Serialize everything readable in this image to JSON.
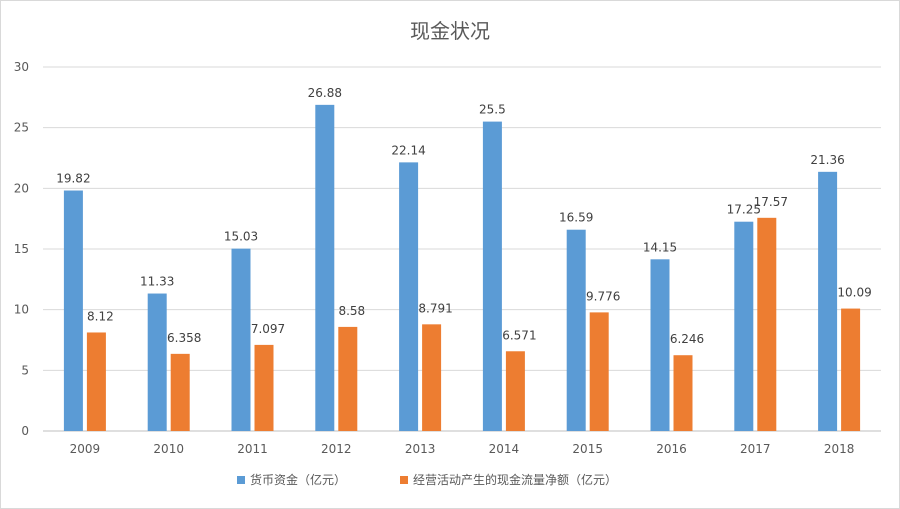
{
  "chart_data": {
    "type": "bar",
    "title": "现金状况",
    "xlabel": "",
    "ylabel": "",
    "categories": [
      "2009",
      "2010",
      "2011",
      "2012",
      "2013",
      "2014",
      "2015",
      "2016",
      "2017",
      "2018"
    ],
    "series": [
      {
        "name": "货币资金（亿元）",
        "color": "#5b9bd5",
        "values": [
          19.82,
          11.33,
          15.03,
          26.88,
          22.14,
          25.5,
          16.59,
          14.15,
          17.25,
          21.36
        ],
        "labels": [
          "19.82",
          "11.33",
          "15.03",
          "26.88",
          "22.14",
          "25.5",
          "16.59",
          "14.15",
          "17.25",
          "21.36"
        ]
      },
      {
        "name": "经营活动产生的现金流量净额（亿元）",
        "color": "#ed7d31",
        "values": [
          8.12,
          6.358,
          7.097,
          8.58,
          8.791,
          6.571,
          9.776,
          6.246,
          17.57,
          10.09
        ],
        "labels": [
          "8.12",
          "6.358",
          "7.097",
          "8.58",
          "8.791",
          "6.571",
          "9.776",
          "6.246",
          "17.57",
          "10.09"
        ]
      }
    ],
    "ylim": [
      0,
      30
    ],
    "yticks": [
      "0",
      "5",
      "10",
      "15",
      "20",
      "25",
      "30"
    ],
    "grid": true,
    "legend_position": "bottom"
  }
}
